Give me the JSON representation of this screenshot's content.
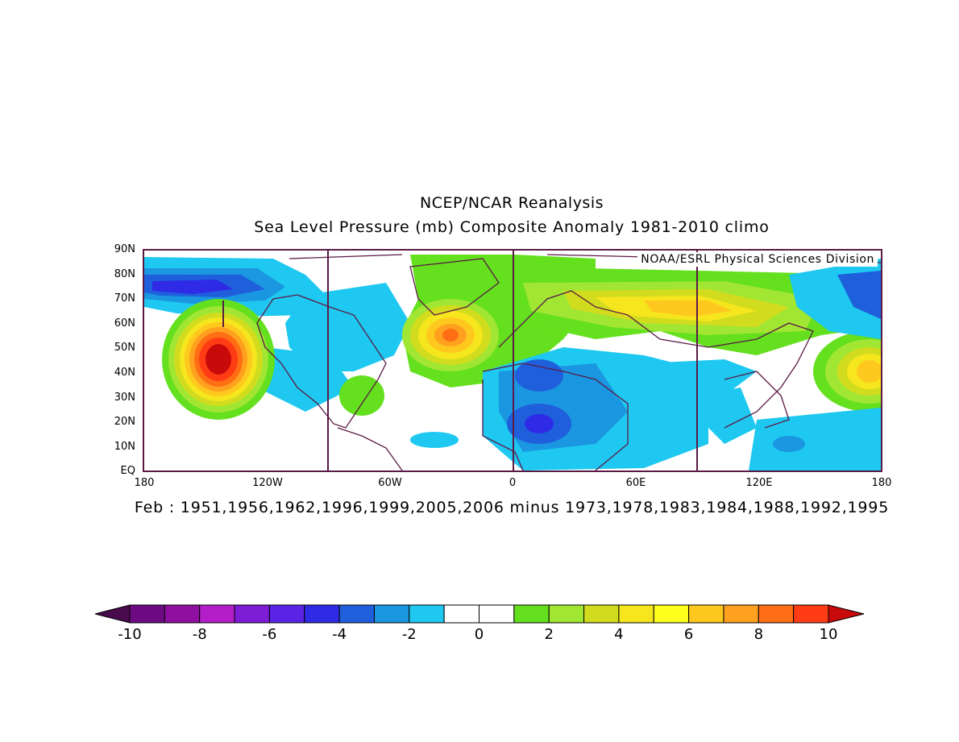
{
  "title": "NCEP/NCAR Reanalysis",
  "subtitle": "Sea Level Pressure (mb) Composite Anomaly 1981-2010 climo",
  "caption": "Feb : 1951,1956,1962,1996,1999,2005,2006 minus 1973,1978,1983,1984,1988,1992,1995",
  "credit": "NOAA/ESRL Physical Sciences Division",
  "lat_labels": [
    "90N",
    "80N",
    "70N",
    "60N",
    "50N",
    "40N",
    "30N",
    "20N",
    "10N",
    "EQ"
  ],
  "lon_labels": [
    "180",
    "120W",
    "60W",
    "0",
    "60E",
    "120E",
    "180"
  ],
  "colorbar": {
    "labels": [
      "-10",
      "-8",
      "-6",
      "-4",
      "-2",
      "0",
      "2",
      "4",
      "6",
      "8",
      "10"
    ],
    "colors": [
      "#4a0a4e",
      "#6d0a82",
      "#8f0fa0",
      "#b41ec8",
      "#7d1dd6",
      "#5a23e6",
      "#2e2ae6",
      "#1f5fdc",
      "#1b96e0",
      "#1ec8f0",
      "#ffffff",
      "#ffffff",
      "#64e01e",
      "#a0e632",
      "#d2dc1e",
      "#f5e61e",
      "#ffff1e",
      "#ffc81e",
      "#ffa01e",
      "#ff6e14",
      "#ff3c14",
      "#c80a0a"
    ]
  },
  "map_colors": {
    "light_blue": "#1ec8f0",
    "mid_blue": "#1b96e0",
    "blue": "#1f5fdc",
    "deep_blue": "#2e2ae6",
    "light_green": "#64e01e",
    "green": "#a0e632",
    "yellow_green": "#d2dc1e",
    "yellow": "#f5e61e",
    "gold": "#ffc81e",
    "orange": "#ffa01e",
    "red_orange": "#ff6e14",
    "red": "#ff3c14",
    "dark_red": "#c80a0a",
    "border": "#5a1a45"
  }
}
